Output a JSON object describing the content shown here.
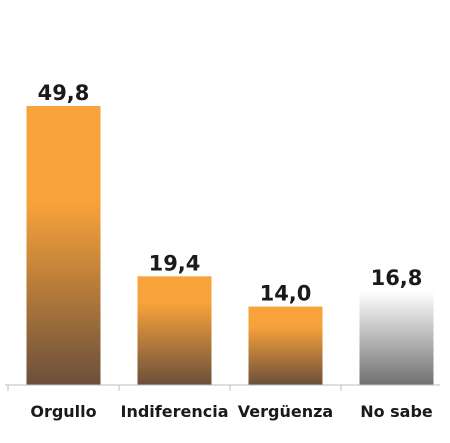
{
  "chart_data": {
    "type": "bar",
    "categories": [
      "Orgullo",
      "Indiferencia",
      "Vergüenza",
      "No sabe"
    ],
    "values": [
      49.8,
      19.4,
      14.0,
      16.8
    ],
    "value_labels": [
      "49,8",
      "19,4",
      "14,0",
      "16,8"
    ],
    "ylim": [
      0,
      55
    ],
    "grid": false,
    "legend": "none",
    "colors": {
      "bar_top": "#f7a23a",
      "bar_bottom": "#6b4f3b",
      "no_sabe_top": "#ffffff",
      "no_sabe_bottom": "#707070",
      "axis": "#bdbdbd"
    }
  }
}
